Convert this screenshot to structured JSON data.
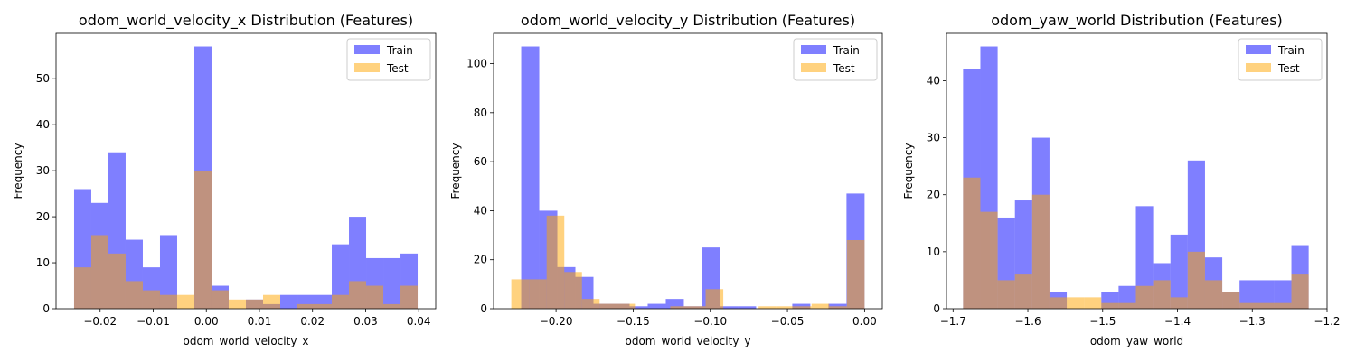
{
  "chart_data": [
    {
      "type": "histogram",
      "title": "odom_world_velocity_x Distribution (Features)",
      "xlabel": "odom_world_velocity_x",
      "ylabel": "Frequency",
      "xlim": [
        -0.0283,
        0.0432
      ],
      "ylim": [
        0,
        59.85
      ],
      "xticks": [
        -0.02,
        -0.01,
        0.0,
        0.01,
        0.02,
        0.03,
        0.04
      ],
      "xtick_labels": [
        "−0.02",
        "−0.01",
        "0.00",
        "0.01",
        "0.02",
        "0.03",
        "0.04"
      ],
      "yticks": [
        0,
        10,
        20,
        30,
        40,
        50
      ],
      "ytick_labels": [
        "0",
        "10",
        "20",
        "30",
        "40",
        "50"
      ],
      "legend": {
        "position": "top-right",
        "entries": [
          "Train",
          "Test"
        ]
      },
      "series": [
        {
          "name": "Train",
          "color": "#0000ff",
          "opacity": 0.5,
          "range": [
            -0.0249,
            0.0398
          ],
          "counts": [
            26,
            23,
            34,
            15,
            9,
            16,
            0,
            57,
            5,
            0,
            2,
            1,
            3,
            3,
            3,
            14,
            20,
            11,
            11,
            12
          ]
        },
        {
          "name": "Test",
          "color": "#ffa500",
          "opacity": 0.5,
          "range": [
            -0.0249,
            0.0398
          ],
          "counts": [
            9,
            16,
            12,
            6,
            4,
            3,
            3,
            30,
            4,
            2,
            2,
            3,
            0,
            1,
            1,
            3,
            6,
            5,
            1,
            5
          ]
        }
      ]
    },
    {
      "type": "histogram",
      "title": "odom_world_velocity_y Distribution (Features)",
      "xlabel": "odom_world_velocity_y",
      "ylabel": "Frequency",
      "xlim": [
        -0.2405,
        0.0115
      ],
      "ylim": [
        0,
        112.35
      ],
      "xticks": [
        -0.2,
        -0.15,
        -0.1,
        -0.05,
        0.0
      ],
      "xtick_labels": [
        "−0.20",
        "−0.15",
        "−0.10",
        "−0.05",
        "0.00"
      ],
      "yticks": [
        0,
        20,
        40,
        60,
        80,
        100
      ],
      "ytick_labels": [
        "0",
        "20",
        "40",
        "60",
        "80",
        "100"
      ],
      "legend": {
        "position": "top-right",
        "entries": [
          "Train",
          "Test"
        ]
      },
      "series": [
        {
          "name": "Train",
          "color": "#0000ff",
          "opacity": 0.5,
          "range": [
            -0.2226,
            0.0
          ],
          "counts": [
            107,
            40,
            17,
            13,
            2,
            2,
            1,
            2,
            4,
            1,
            25,
            1,
            1,
            0,
            0,
            2,
            0,
            2,
            47
          ]
        },
        {
          "name": "Test",
          "color": "#ffa500",
          "opacity": 0.5,
          "range": [
            -0.229,
            0.0
          ],
          "counts": [
            12,
            12,
            38,
            15,
            4,
            2,
            2,
            0,
            0,
            1,
            1,
            8,
            0,
            0,
            1,
            1,
            1,
            2,
            1,
            28
          ]
        }
      ]
    },
    {
      "type": "histogram",
      "title": "odom_yaw_world Distribution (Features)",
      "xlabel": "odom_yaw_world",
      "ylabel": "Frequency",
      "xlim": [
        -1.7088,
        -1.2
      ],
      "ylim": [
        0,
        48.3
      ],
      "xticks": [
        -1.7,
        -1.6,
        -1.5,
        -1.4,
        -1.3,
        -1.2
      ],
      "xtick_labels": [
        "−1.7",
        "−1.6",
        "−1.5",
        "−1.4",
        "−1.3",
        "−1.2"
      ],
      "yticks": [
        0,
        10,
        20,
        30,
        40
      ],
      "ytick_labels": [
        "0",
        "10",
        "20",
        "30",
        "40"
      ],
      "legend": {
        "position": "top-right",
        "entries": [
          "Train",
          "Test"
        ]
      },
      "series": [
        {
          "name": "Train",
          "color": "#0000ff",
          "opacity": 0.5,
          "range": [
            -1.6866,
            -1.2246
          ],
          "counts": [
            42,
            46,
            16,
            19,
            30,
            3,
            0,
            0,
            3,
            4,
            18,
            8,
            13,
            26,
            9,
            3,
            5,
            5,
            5,
            11
          ]
        },
        {
          "name": "Test",
          "color": "#ffa500",
          "opacity": 0.5,
          "range": [
            -1.6866,
            -1.2246
          ],
          "counts": [
            23,
            17,
            5,
            6,
            20,
            2,
            2,
            2,
            1,
            1,
            4,
            5,
            2,
            10,
            5,
            3,
            1,
            1,
            1,
            6
          ]
        }
      ]
    }
  ]
}
